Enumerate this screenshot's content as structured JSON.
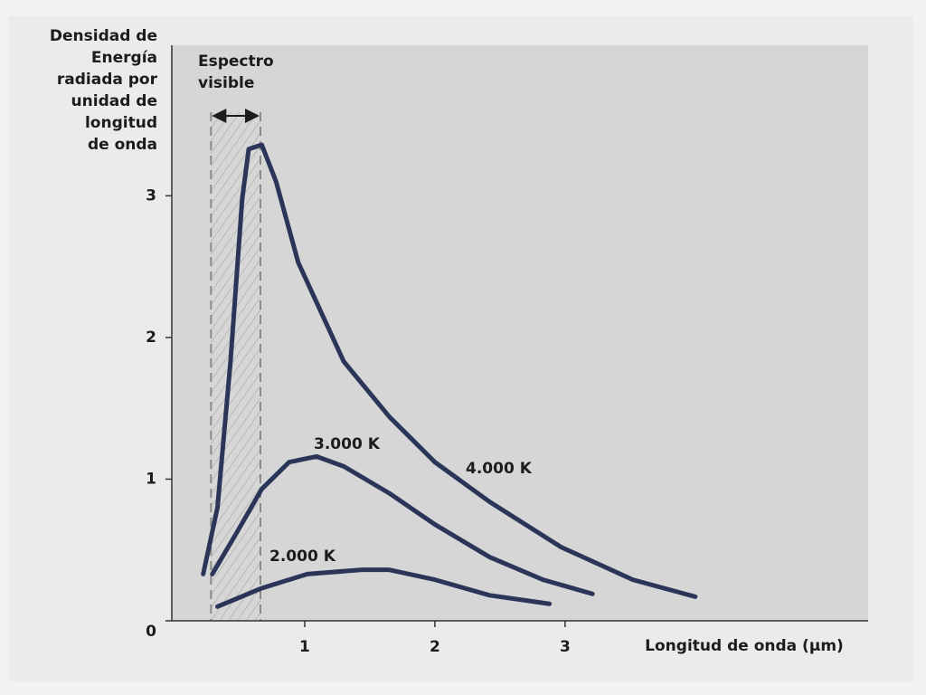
{
  "chart_data": {
    "type": "line",
    "y_label": [
      "Densidad de",
      "Energía",
      "radiada por",
      "unidad de",
      "longitud",
      "de onda"
    ],
    "x_label": "Longitud de onda (μm)",
    "xlim": [
      0,
      5.3
    ],
    "ylim": [
      0,
      4.05
    ],
    "xticks": [
      1,
      2,
      3
    ],
    "yticks": [
      0,
      1,
      2,
      3
    ],
    "visible_band": [
      0.28,
      0.66
    ],
    "visible_label": [
      "Espectro",
      "visible"
    ],
    "series": [
      {
        "name": "4.000 K",
        "color": "#2a3558",
        "x": [
          0.22,
          0.33,
          0.43,
          0.52,
          0.57,
          0.67,
          0.78,
          0.95,
          1.3,
          1.65,
          2.0,
          2.42,
          2.97,
          3.52,
          4.0
        ],
        "values": [
          0.33,
          0.8,
          1.83,
          2.98,
          3.33,
          3.36,
          3.1,
          2.53,
          1.83,
          1.44,
          1.12,
          0.84,
          0.52,
          0.29,
          0.17
        ]
      },
      {
        "name": "3.000 K",
        "color": "#2a3558",
        "x": [
          0.29,
          0.47,
          0.67,
          0.88,
          1.09,
          1.3,
          1.65,
          2.0,
          2.42,
          2.83,
          3.21
        ],
        "values": [
          0.33,
          0.61,
          0.93,
          1.12,
          1.16,
          1.09,
          0.9,
          0.68,
          0.45,
          0.29,
          0.19
        ]
      },
      {
        "name": "2.000 K",
        "color": "#2a3558",
        "x": [
          0.33,
          0.67,
          1.02,
          1.44,
          1.65,
          2.0,
          2.42,
          2.88
        ],
        "values": [
          0.1,
          0.23,
          0.33,
          0.36,
          0.36,
          0.29,
          0.18,
          0.12
        ]
      }
    ]
  }
}
